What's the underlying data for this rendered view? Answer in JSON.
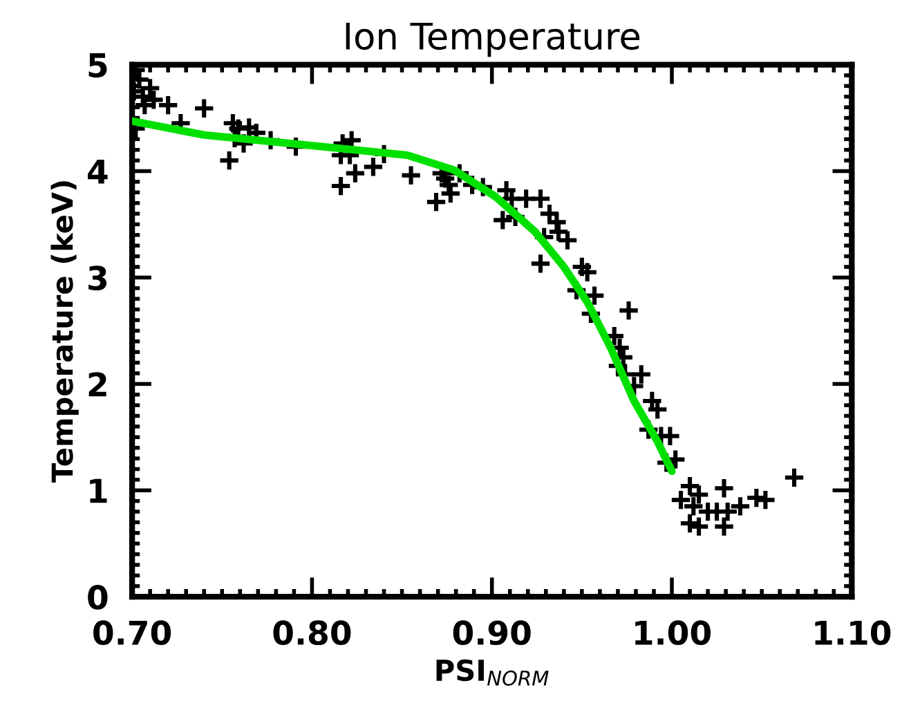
{
  "chart_data": {
    "type": "scatter",
    "title": "Ion Temperature",
    "xlabel": "PSI$_{NORM}$",
    "ylabel": "Temperature (keV)",
    "xlim": [
      0.7,
      1.1
    ],
    "xticks": [
      {
        "value": 0.7,
        "label": "0.70"
      },
      {
        "value": 0.8,
        "label": "0.80"
      },
      {
        "value": 0.9,
        "label": "0.90"
      },
      {
        "value": 1.0,
        "label": "1.00"
      },
      {
        "value": 1.1,
        "label": "1.10"
      }
    ],
    "ylim": [
      0,
      5
    ],
    "yticks": [
      0,
      1,
      2,
      3,
      4,
      5
    ],
    "grid": false,
    "legend": false,
    "series": [
      {
        "marker": "cross",
        "color": "#000000",
        "x": [
          0.702,
          0.704,
          0.701,
          0.706,
          0.71,
          0.712,
          0.707,
          0.72,
          0.702,
          0.727,
          0.74,
          0.756,
          0.759,
          0.757,
          0.754,
          0.762,
          0.765,
          0.769,
          0.777,
          0.791,
          0.817,
          0.822,
          0.816,
          0.821,
          0.816,
          0.824,
          0.834,
          0.84,
          0.855,
          0.869,
          0.872,
          0.876,
          0.877,
          0.874,
          0.882,
          0.889,
          0.895,
          0.908,
          0.911,
          0.906,
          0.913,
          0.919,
          0.927,
          0.932,
          0.936,
          0.929,
          0.937,
          0.942,
          0.927,
          0.95,
          0.953,
          0.947,
          0.957,
          0.955,
          0.976,
          0.968,
          0.971,
          0.973,
          0.97,
          0.974,
          0.983,
          0.979,
          0.989,
          0.992,
          0.987,
          0.994,
          0.999,
          0.997,
          1.002,
          1.01,
          1.005,
          1.012,
          1.015,
          1.02,
          1.01,
          1.015,
          1.029,
          1.025,
          1.029,
          1.031,
          1.038,
          1.047,
          1.052,
          1.068
        ],
        "values": [
          4.95,
          4.86,
          4.75,
          4.7,
          4.78,
          4.67,
          4.62,
          4.62,
          4.4,
          4.45,
          4.59,
          4.45,
          4.4,
          4.31,
          4.1,
          4.26,
          4.41,
          4.36,
          4.29,
          4.23,
          4.26,
          4.29,
          4.15,
          4.15,
          3.86,
          3.98,
          4.04,
          4.16,
          3.96,
          3.71,
          3.98,
          3.87,
          3.79,
          3.93,
          3.98,
          3.87,
          3.85,
          3.82,
          3.74,
          3.54,
          3.57,
          3.74,
          3.74,
          3.6,
          3.52,
          3.38,
          3.43,
          3.35,
          3.13,
          3.1,
          3.05,
          2.88,
          2.83,
          2.66,
          2.69,
          2.45,
          2.34,
          2.25,
          2.17,
          2.09,
          2.09,
          1.98,
          1.84,
          1.76,
          1.57,
          1.51,
          1.51,
          1.26,
          1.29,
          1.04,
          0.91,
          0.85,
          0.96,
          0.8,
          0.69,
          0.66,
          1.02,
          0.8,
          0.66,
          0.8,
          0.85,
          0.93,
          0.91,
          1.12
        ]
      },
      {
        "type": "line",
        "color": "#00e000",
        "x": [
          0.7,
          0.74,
          0.788,
          0.853,
          0.879,
          0.902,
          0.924,
          0.94,
          0.953,
          0.966,
          0.979,
          0.992,
          1.0
        ],
        "values": [
          4.47,
          4.34,
          4.26,
          4.15,
          4.01,
          3.76,
          3.43,
          3.1,
          2.77,
          2.34,
          1.84,
          1.46,
          1.18
        ]
      }
    ]
  }
}
